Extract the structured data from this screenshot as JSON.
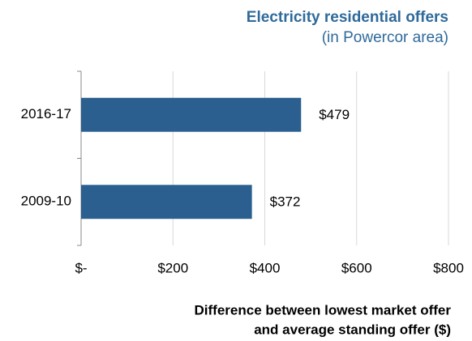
{
  "chart_data": {
    "type": "bar",
    "orientation": "horizontal",
    "title": "Electricity residential offers",
    "subtitle": "(in Powercor area)",
    "xlabel": [
      "Difference between lowest market offer",
      "and average standing offer ($)"
    ],
    "categories": [
      "2016-17",
      "2009-10"
    ],
    "values": [
      479,
      372
    ],
    "value_labels": [
      "$479",
      "$372"
    ],
    "color": "#2a5f8f",
    "xlim": [
      0,
      800
    ],
    "xticks": [
      {
        "value": 0,
        "label": "$-"
      },
      {
        "value": 200,
        "label": "$200"
      },
      {
        "value": 400,
        "label": "$400"
      },
      {
        "value": 600,
        "label": "$600"
      },
      {
        "value": 800,
        "label": "$800"
      }
    ],
    "grid": true
  }
}
